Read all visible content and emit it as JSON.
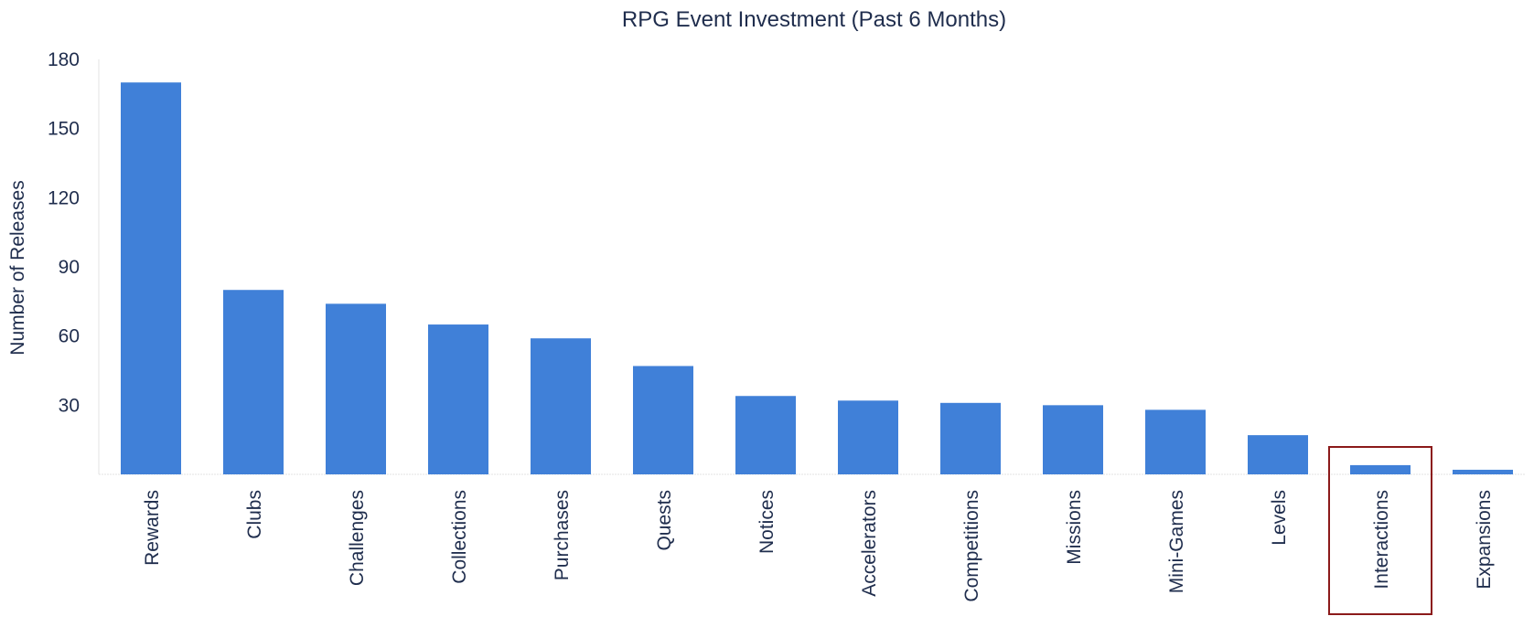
{
  "chart_data": {
    "type": "bar",
    "title": "RPG Event Investment (Past 6 Months)",
    "xlabel": "",
    "ylabel": "Number of Releases",
    "categories": [
      "Rewards",
      "Clubs",
      "Challenges",
      "Collections",
      "Purchases",
      "Quests",
      "Notices",
      "Accelerators",
      "Competitions",
      "Missions",
      "Mini-Games",
      "Levels",
      "Interactions",
      "Expansions"
    ],
    "values": [
      170,
      80,
      74,
      65,
      59,
      47,
      34,
      32,
      31,
      30,
      28,
      17,
      4,
      2
    ],
    "ylim": [
      0,
      180
    ],
    "yticks": [
      30,
      60,
      90,
      120,
      150,
      180
    ],
    "grid": false,
    "legend": "none",
    "highlighted_category": "Interactions"
  },
  "colors": {
    "bar": "#4080d8",
    "text": "#1f2d4d",
    "axis": "#d9d9d9",
    "highlight_box": "#8b1a1a"
  }
}
